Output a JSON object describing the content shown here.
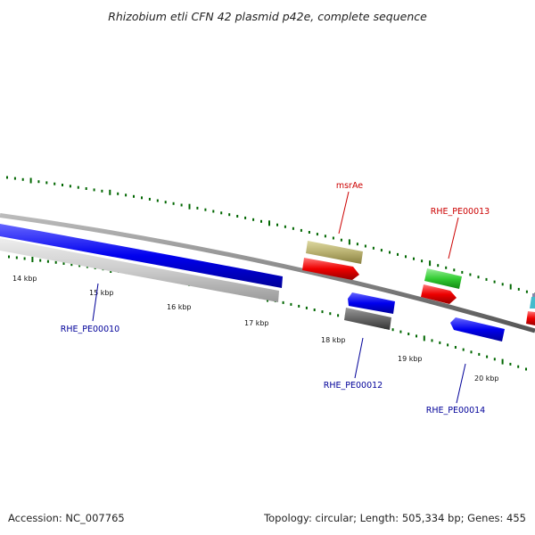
{
  "title": "Rhizobium etli CFN 42 plasmid p42e, complete sequence",
  "ticks": [
    "14 kbp",
    "15 kbp",
    "16 kbp",
    "17 kbp",
    "18 kbp",
    "19 kbp",
    "20 kbp"
  ],
  "gene_labels": {
    "msrAe": "msrAe",
    "pe00013": "RHE_PE00013",
    "pe00010": "RHE_PE00010",
    "pe00012": "RHE_PE00012",
    "pe00014": "RHE_PE00014"
  },
  "colors": {
    "backbone": "#888888",
    "forward_gene": "#ff0000",
    "reverse_gene": "#0000ff",
    "label_red": "#cc0000",
    "label_blue": "#000099",
    "tick": "#006600",
    "pseudo_gene": "#c8c8c8",
    "rna_gene": "#b8b070",
    "gray_gene": "#666666",
    "green_gene": "#33cc33"
  },
  "footer": {
    "accession": "Accession: NC_007765",
    "summary": "Topology: circular; Length: 505,334 bp; Genes: 455"
  }
}
